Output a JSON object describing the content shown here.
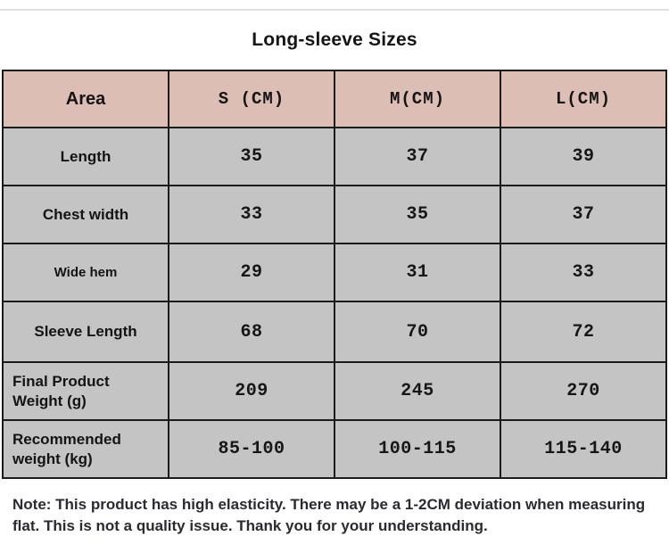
{
  "page": {
    "title": "Long-sleeve Sizes",
    "note": "Note: This product has high elasticity. There may be a 1-2CM deviation when measuring flat. This is not a quality issue. Thank you for your understanding."
  },
  "colors": {
    "header_bg": "#dcbeb5",
    "body_bg": "#c4c4c4",
    "border": "#1b1b1b",
    "top_divider": "#dbe0e9",
    "note_text": "#2a2a32"
  },
  "chart_data": {
    "type": "table",
    "title": "Long-sleeve Sizes",
    "columns": [
      "Area",
      "S (CM)",
      "M(CM)",
      "L(CM)"
    ],
    "rows": [
      {
        "label": "Length",
        "s": "35",
        "m": "37",
        "l": "39"
      },
      {
        "label": "Chest width",
        "s": "33",
        "m": "35",
        "l": "37"
      },
      {
        "label": "Wide hem",
        "s": "29",
        "m": "31",
        "l": "33"
      },
      {
        "label": "Sleeve Length",
        "s": "68",
        "m": "70",
        "l": "72"
      },
      {
        "label": "Final Product Weight (g)",
        "s": "209",
        "m": "245",
        "l": "270"
      },
      {
        "label": "Recommended weight (kg)",
        "s": "85-100",
        "m": "100-115",
        "l": "115-140"
      }
    ],
    "note": "Note: This product has high elasticity. There may be a 1-2CM deviation when measuring flat. This is not a quality issue. Thank you for your understanding."
  }
}
